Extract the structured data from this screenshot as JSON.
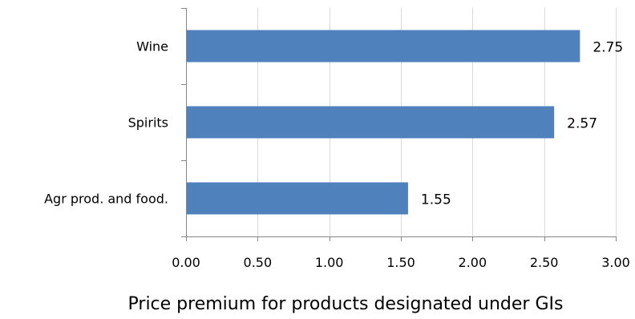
{
  "chart_data": {
    "type": "bar",
    "orientation": "horizontal",
    "categories": [
      "Wine",
      "Spirits",
      "Agr prod. and food."
    ],
    "values": [
      2.75,
      2.57,
      1.55
    ],
    "data_labels": [
      "2.75",
      "2.57",
      "1.55"
    ],
    "xlabel": "Price premium for products designated under GIs",
    "ylabel": "",
    "xlim": [
      0,
      3
    ],
    "x_ticks": [
      0,
      0.5,
      1,
      1.5,
      2,
      2.5,
      3
    ],
    "x_tick_labels": [
      "0.00",
      "0.50",
      "1.00",
      "1.50",
      "2.00",
      "2.50",
      "3.00"
    ],
    "grid": "vertical",
    "legend": "none",
    "colors": {
      "bar": "#4f81bd",
      "grid": "#d9d9d9",
      "axis": "#868686"
    }
  }
}
